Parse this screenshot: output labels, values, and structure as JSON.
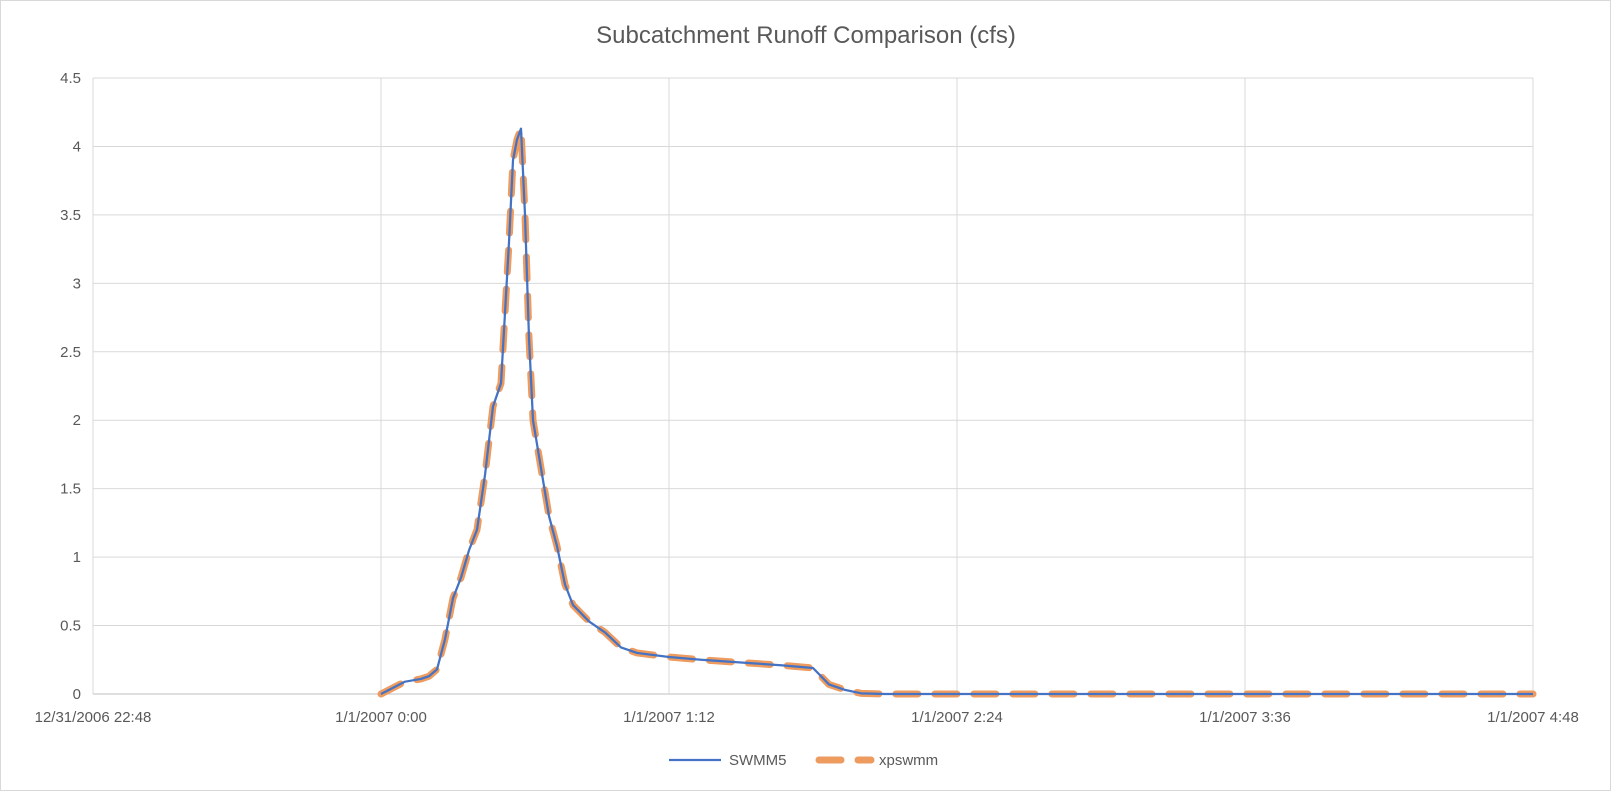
{
  "chart_data": {
    "type": "line",
    "title": "Subcatchment Runoff Comparison (cfs)",
    "xlabel": "",
    "ylabel": "",
    "x_axis_type": "datetime",
    "xlim": [
      "12/31/2006 22:48",
      "1/1/2007 4:48"
    ],
    "x_ticks": [
      "12/31/2006 22:48",
      "1/1/2007 0:00",
      "1/1/2007 1:12",
      "1/1/2007 2:24",
      "1/1/2007 3:36",
      "1/1/2007 4:48"
    ],
    "ylim": [
      0,
      4.5
    ],
    "y_ticks": [
      "0",
      "0.5",
      "1",
      "1.5",
      "2",
      "2.5",
      "3",
      "3.5",
      "4",
      "4.5"
    ],
    "grid": true,
    "legend_position": "bottom",
    "series": [
      {
        "name": "SWMM5",
        "color": "#4472c4",
        "style": "solid",
        "points": [
          [
            "1/1/2007 0:00",
            0
          ],
          [
            "1/1/2007 0:04",
            0.06
          ],
          [
            "1/1/2007 0:06",
            0.09
          ],
          [
            "1/1/2007 0:08",
            0.1
          ],
          [
            "1/1/2007 0:10",
            0.11
          ],
          [
            "1/1/2007 0:12",
            0.13
          ],
          [
            "1/1/2007 0:14",
            0.18
          ],
          [
            "1/1/2007 0:16",
            0.4
          ],
          [
            "1/1/2007 0:18",
            0.7
          ],
          [
            "1/1/2007 0:20",
            0.85
          ],
          [
            "1/1/2007 0:22",
            1.05
          ],
          [
            "1/1/2007 0:24",
            1.2
          ],
          [
            "1/1/2007 0:26",
            1.6
          ],
          [
            "1/1/2007 0:28",
            2.1
          ],
          [
            "1/1/2007 0:30",
            2.27
          ],
          [
            "1/1/2007 0:32",
            3.3
          ],
          [
            "1/1/2007 0:33",
            3.9
          ],
          [
            "1/1/2007 0:34",
            4.05
          ],
          [
            "1/1/2007 0:35",
            4.13
          ],
          [
            "1/1/2007 0:36",
            3.5
          ],
          [
            "1/1/2007 0:37",
            2.6
          ],
          [
            "1/1/2007 0:38",
            2.0
          ],
          [
            "1/1/2007 0:40",
            1.65
          ],
          [
            "1/1/2007 0:42",
            1.3
          ],
          [
            "1/1/2007 0:44",
            1.08
          ],
          [
            "1/1/2007 0:46",
            0.8
          ],
          [
            "1/1/2007 0:48",
            0.65
          ],
          [
            "1/1/2007 0:52",
            0.53
          ],
          [
            "1/1/2007 0:56",
            0.45
          ],
          [
            "1/1/2007 1:00",
            0.34
          ],
          [
            "1/1/2007 1:04",
            0.3
          ],
          [
            "1/1/2007 1:12",
            0.27
          ],
          [
            "1/1/2007 1:20",
            0.25
          ],
          [
            "1/1/2007 1:30",
            0.23
          ],
          [
            "1/1/2007 1:40",
            0.21
          ],
          [
            "1/1/2007 1:48",
            0.19
          ],
          [
            "1/1/2007 1:50",
            0.13
          ],
          [
            "1/1/2007 1:52",
            0.07
          ],
          [
            "1/1/2007 1:56",
            0.03
          ],
          [
            "1/1/2007 2:00",
            0.005
          ],
          [
            "1/1/2007 2:06",
            0
          ],
          [
            "1/1/2007 4:48",
            0
          ]
        ]
      },
      {
        "name": "xpswmm",
        "color": "#ed9b5e",
        "style": "dashed",
        "points": [
          [
            "1/1/2007 0:00",
            0
          ],
          [
            "1/1/2007 0:04",
            0.06
          ],
          [
            "1/1/2007 0:06",
            0.09
          ],
          [
            "1/1/2007 0:08",
            0.1
          ],
          [
            "1/1/2007 0:10",
            0.11
          ],
          [
            "1/1/2007 0:12",
            0.13
          ],
          [
            "1/1/2007 0:14",
            0.18
          ],
          [
            "1/1/2007 0:16",
            0.4
          ],
          [
            "1/1/2007 0:18",
            0.7
          ],
          [
            "1/1/2007 0:20",
            0.85
          ],
          [
            "1/1/2007 0:22",
            1.05
          ],
          [
            "1/1/2007 0:24",
            1.2
          ],
          [
            "1/1/2007 0:26",
            1.6
          ],
          [
            "1/1/2007 0:28",
            2.1
          ],
          [
            "1/1/2007 0:30",
            2.27
          ],
          [
            "1/1/2007 0:32",
            3.3
          ],
          [
            "1/1/2007 0:33",
            3.9
          ],
          [
            "1/1/2007 0:34",
            4.05
          ],
          [
            "1/1/2007 0:35",
            4.13
          ],
          [
            "1/1/2007 0:36",
            3.5
          ],
          [
            "1/1/2007 0:37",
            2.6
          ],
          [
            "1/1/2007 0:38",
            2.0
          ],
          [
            "1/1/2007 0:40",
            1.65
          ],
          [
            "1/1/2007 0:42",
            1.3
          ],
          [
            "1/1/2007 0:44",
            1.08
          ],
          [
            "1/1/2007 0:46",
            0.8
          ],
          [
            "1/1/2007 0:48",
            0.65
          ],
          [
            "1/1/2007 0:52",
            0.53
          ],
          [
            "1/1/2007 0:56",
            0.45
          ],
          [
            "1/1/2007 1:00",
            0.34
          ],
          [
            "1/1/2007 1:04",
            0.3
          ],
          [
            "1/1/2007 1:12",
            0.27
          ],
          [
            "1/1/2007 1:20",
            0.25
          ],
          [
            "1/1/2007 1:30",
            0.23
          ],
          [
            "1/1/2007 1:40",
            0.21
          ],
          [
            "1/1/2007 1:48",
            0.19
          ],
          [
            "1/1/2007 1:50",
            0.13
          ],
          [
            "1/1/2007 1:52",
            0.07
          ],
          [
            "1/1/2007 1:56",
            0.03
          ],
          [
            "1/1/2007 2:00",
            0.005
          ],
          [
            "1/1/2007 2:06",
            0
          ],
          [
            "1/1/2007 4:48",
            0
          ]
        ]
      }
    ]
  }
}
